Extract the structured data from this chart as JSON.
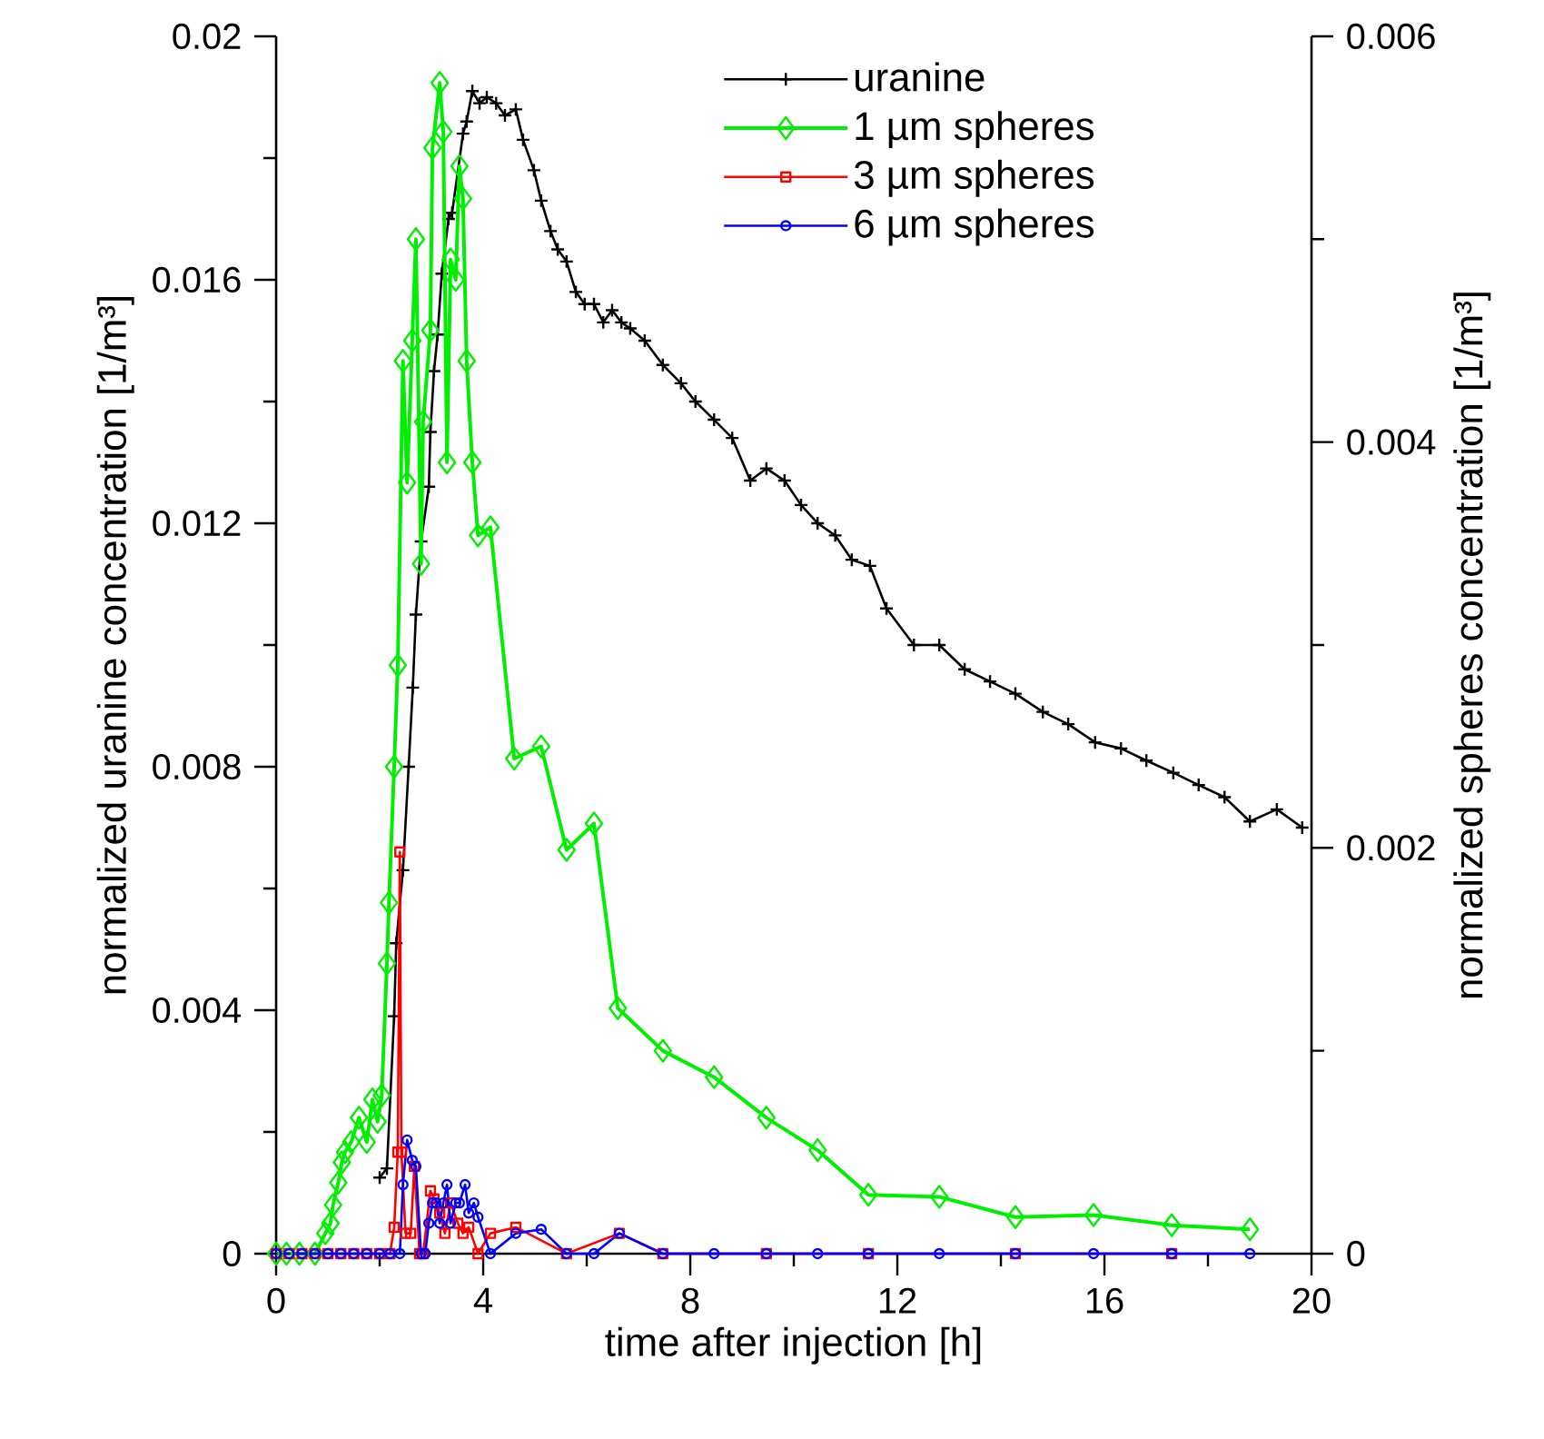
{
  "chart_data": {
    "type": "line",
    "xlabel": "time after injection [h]",
    "ylabel": "normalized uranine concentration [1/m³]",
    "y2label": "normalized spheres concentration [1/m³]",
    "xlim": [
      0,
      20
    ],
    "xticks": [
      0,
      4,
      8,
      12,
      16,
      20
    ],
    "ylim": [
      0,
      0.02
    ],
    "yticks": [
      0,
      0.004,
      0.008,
      0.012,
      0.016,
      0.02
    ],
    "y2lim": [
      0,
      0.006
    ],
    "y2ticks": [
      0,
      0.002,
      0.004,
      0.006
    ],
    "grid": false,
    "legend": "top right",
    "series": [
      {
        "name": "uranine",
        "color": "#000000",
        "marker": "cross",
        "x": [
          2.0,
          2.14,
          2.28,
          2.32,
          2.45,
          2.56,
          2.64,
          2.7,
          2.8,
          2.95,
          2.98,
          3.05,
          3.12,
          3.2,
          3.33,
          3.4,
          3.61,
          3.68,
          3.79,
          3.93,
          4.07,
          4.25,
          4.42,
          4.63,
          4.77,
          4.98,
          5.12,
          5.3,
          5.44,
          5.61,
          5.79,
          5.96,
          6.14,
          6.32,
          6.49,
          6.67,
          6.84,
          7.12,
          7.47,
          7.82,
          8.1,
          8.46,
          8.81,
          9.16,
          9.47,
          9.82,
          10.14,
          10.46,
          10.8,
          11.12,
          11.47,
          11.79,
          12.32,
          12.81,
          13.3,
          13.79,
          14.28,
          14.81,
          15.3,
          15.82,
          16.32,
          16.81,
          17.33,
          17.82,
          18.32,
          18.81,
          19.33,
          19.82
        ],
        "values": [
          0.00125,
          0.0014,
          0.0039,
          0.0051,
          0.0063,
          0.008,
          0.0093,
          0.0105,
          0.0117,
          0.0126,
          0.0135,
          0.0145,
          0.0151,
          0.0161,
          0.017,
          0.0171,
          0.0184,
          0.0186,
          0.0191,
          0.0189,
          0.019,
          0.0189,
          0.0187,
          0.0188,
          0.0183,
          0.0178,
          0.0173,
          0.0168,
          0.0165,
          0.0163,
          0.0158,
          0.0156,
          0.0156,
          0.0153,
          0.0155,
          0.0153,
          0.0152,
          0.015,
          0.0146,
          0.0143,
          0.014,
          0.0137,
          0.0134,
          0.0127,
          0.0129,
          0.0127,
          0.0123,
          0.012,
          0.0118,
          0.0114,
          0.0113,
          0.0106,
          0.01,
          0.01,
          0.0096,
          0.0094,
          0.0092,
          0.0089,
          0.0087,
          0.0084,
          0.0083,
          0.0081,
          0.0079,
          0.0077,
          0.0075,
          0.0071,
          0.0073,
          0.007
        ]
      },
      {
        "name": "1 µm spheres",
        "color": "#00ee00",
        "marker": "diamond",
        "axis": "y2",
        "x": [
          0.0,
          0.2,
          0.45,
          0.75,
          0.95,
          1.05,
          1.1,
          1.2,
          1.27,
          1.33,
          1.45,
          1.6,
          1.75,
          1.86,
          1.96,
          2.04,
          2.14,
          2.18,
          2.28,
          2.35,
          2.45,
          2.53,
          2.63,
          2.7,
          2.8,
          2.84,
          2.98,
          3.02,
          3.16,
          3.23,
          3.3,
          3.37,
          3.47,
          3.54,
          3.61,
          3.68,
          3.79,
          3.9,
          4.14,
          4.6,
          5.12,
          5.61,
          6.14,
          6.6,
          7.47,
          8.46,
          9.47,
          10.46,
          11.44,
          12.81,
          14.28,
          15.79,
          17.3,
          18.81
        ],
        "values": [
          0,
          0,
          0,
          0,
          0.0001,
          0.00015,
          0.00024,
          0.00035,
          0.00045,
          0.0005,
          0.00055,
          0.00067,
          0.00055,
          0.00076,
          0.00065,
          0.00078,
          0.00143,
          0.00173,
          0.0024,
          0.0029,
          0.0044,
          0.0038,
          0.0045,
          0.005,
          0.0034,
          0.0041,
          0.00455,
          0.00545,
          0.00577,
          0.00553,
          0.0039,
          0.0049,
          0.0048,
          0.00536,
          0.0052,
          0.0044,
          0.0039,
          0.00354,
          0.00358,
          0.00244,
          0.0025,
          0.00199,
          0.00212,
          0.00121,
          0.001,
          0.00087,
          0.00067,
          0.00051,
          0.00029,
          0.00028,
          0.00018,
          0.00019,
          0.00014,
          0.00012
        ]
      },
      {
        "name": "3 µm spheres",
        "color": "#ff0000",
        "marker": "square",
        "axis": "y2",
        "x": [
          0,
          0.25,
          0.5,
          0.75,
          1.0,
          1.25,
          1.5,
          1.75,
          2.0,
          2.2,
          2.28,
          2.35,
          2.39,
          2.42,
          2.5,
          2.6,
          2.67,
          2.77,
          2.84,
          2.98,
          3.05,
          3.16,
          3.26,
          3.37,
          3.51,
          3.61,
          3.72,
          3.9,
          4.14,
          4.63,
          5.61,
          6.63,
          7.47,
          9.47,
          11.44,
          14.28,
          17.3
        ],
        "values": [
          0,
          0,
          0,
          0,
          0,
          0,
          0,
          0,
          0,
          0,
          0.00013,
          0.0005,
          0.00198,
          0.0005,
          0.0001,
          0.0001,
          0.00043,
          0,
          0,
          0.00031,
          0.00027,
          0.0002,
          0.0001,
          0.00025,
          0.00015,
          0.0001,
          0.00013,
          0,
          0.0001,
          0.00013,
          0,
          0.0001,
          0,
          0,
          0,
          0,
          0
        ]
      },
      {
        "name": "6 µm spheres",
        "color": "#0000ff",
        "marker": "circle",
        "axis": "y2",
        "x": [
          0,
          0.25,
          0.5,
          0.75,
          1.0,
          1.25,
          1.5,
          1.75,
          2.0,
          2.2,
          2.39,
          2.45,
          2.53,
          2.63,
          2.7,
          2.8,
          2.88,
          2.95,
          3.02,
          3.09,
          3.16,
          3.23,
          3.3,
          3.37,
          3.47,
          3.54,
          3.65,
          3.72,
          3.82,
          3.9,
          4.14,
          4.63,
          5.12,
          5.61,
          6.14,
          6.63,
          7.47,
          8.46,
          9.47,
          10.46,
          11.44,
          12.81,
          14.28,
          15.79,
          17.3,
          18.81
        ],
        "values": [
          0,
          0,
          0,
          0,
          0,
          0,
          0,
          0,
          0,
          0,
          0,
          0.00034,
          0.00056,
          0.00046,
          0.00043,
          0,
          0,
          0.00015,
          0.00025,
          0.00025,
          0.00015,
          0.00025,
          0.00034,
          0.00015,
          0.00025,
          0.00025,
          0.00034,
          0.0002,
          0.00025,
          0.00018,
          0,
          0.0001,
          0.00012,
          0,
          0,
          0.0001,
          0,
          0,
          0,
          0,
          0,
          0,
          0,
          0,
          0,
          0
        ]
      }
    ]
  }
}
